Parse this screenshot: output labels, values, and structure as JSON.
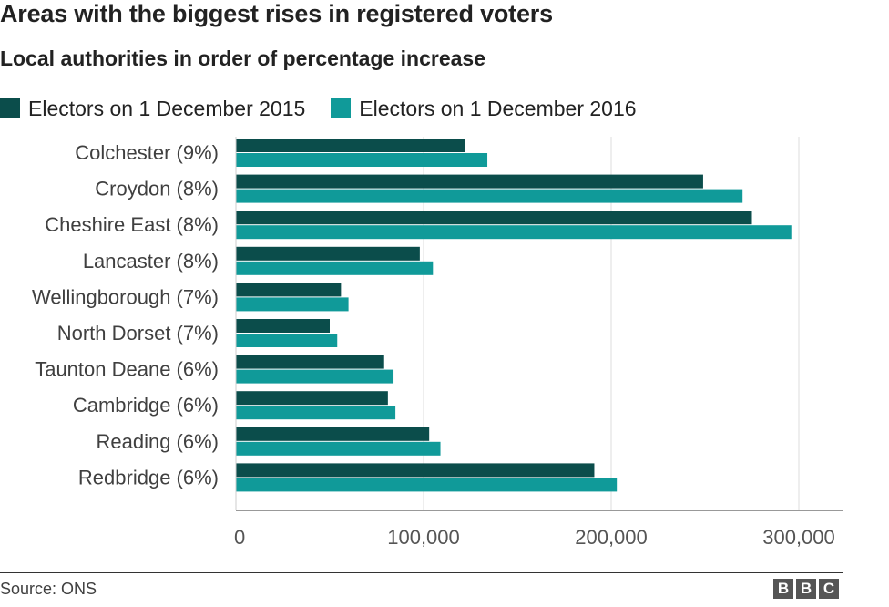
{
  "header": {
    "title": "Areas with the biggest rises in registered voters",
    "subtitle": "Local authorities in order of percentage increase"
  },
  "legend": [
    {
      "label": "Electors on 1 December 2015",
      "color": "#0b4d4b"
    },
    {
      "label": "Electors on 1 December 2016",
      "color": "#109a99"
    }
  ],
  "footer": {
    "source": "Source: ONS",
    "logo_letters": [
      "B",
      "B",
      "C"
    ]
  },
  "chart_data": {
    "type": "bar",
    "orientation": "horizontal",
    "categories": [
      "Colchester (9%)",
      "Croydon (8%)",
      "Cheshire East (8%)",
      "Lancaster (8%)",
      "Wellingborough (7%)",
      "North Dorset (7%)",
      "Taunton Deane (6%)",
      "Cambridge (6%)",
      "Reading (6%)",
      "Redbridge (6%)"
    ],
    "series": [
      {
        "name": "Electors on 1 December 2015",
        "color": "#0b4d4b",
        "values": [
          122000,
          249000,
          275000,
          98000,
          56000,
          50000,
          79000,
          81000,
          103000,
          191000
        ]
      },
      {
        "name": "Electors on 1 December 2016",
        "color": "#109a99",
        "values": [
          134000,
          270000,
          296000,
          105000,
          60000,
          54000,
          84000,
          85000,
          109000,
          203000
        ]
      }
    ],
    "xlim": [
      0,
      320000
    ],
    "xticks": [
      0,
      100000,
      200000,
      300000
    ],
    "xtick_labels": [
      "0",
      "100,000",
      "200,000",
      "300,000"
    ],
    "grid": true
  }
}
